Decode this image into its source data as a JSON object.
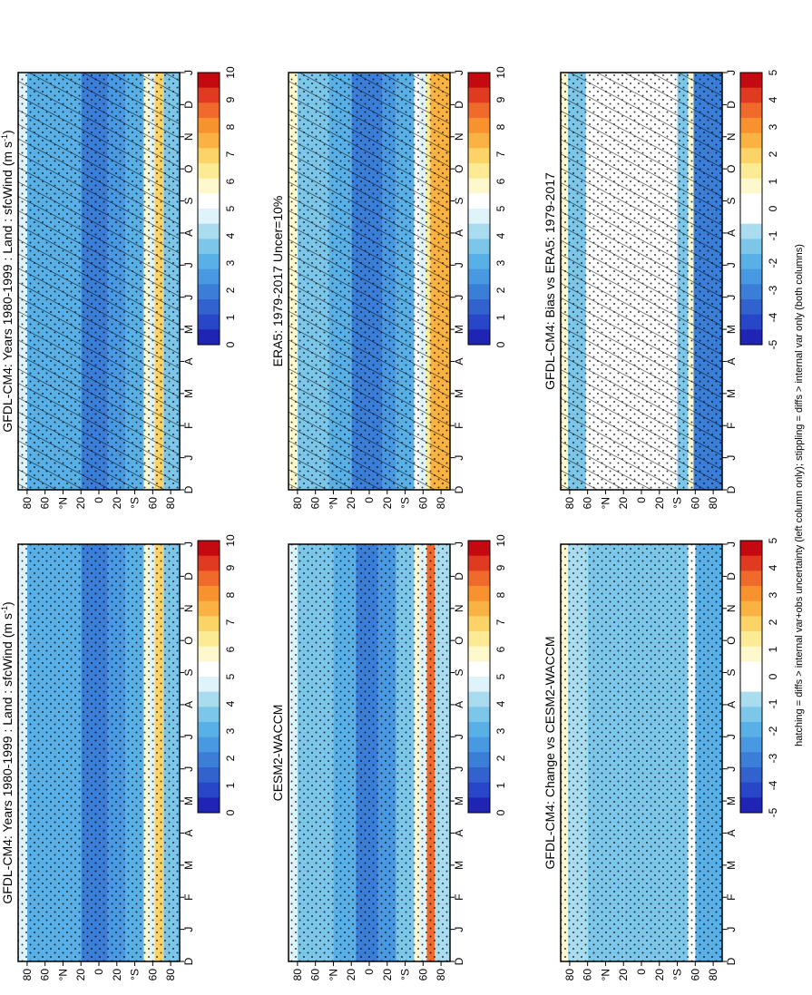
{
  "chart_data": {
    "type": "heatmap",
    "orientation": "rotated-90",
    "months": [
      "D",
      "J",
      "F",
      "M",
      "A",
      "M",
      "J",
      "J",
      "A",
      "S",
      "O",
      "N",
      "D",
      "J"
    ],
    "lat_ticks": [
      "80",
      "60",
      "°N",
      "20",
      "0",
      "20",
      "°S",
      "60",
      "80"
    ],
    "lat_range": [
      -90,
      90
    ],
    "footnote": "hatching = diffs > internal var+obs uncertainty (left column only); stippling = diffs > internal var only (both columns)",
    "colormaps": {
      "mean": [
        "#c40a10",
        "#e03a20",
        "#f06a2c",
        "#f8922e",
        "#fab343",
        "#fcd366",
        "#fdea95",
        "#fef8cd",
        "#ffffff",
        "#dff3fb",
        "#a9dcef",
        "#7cc6ea",
        "#58b0e6",
        "#4898e2",
        "#3a7ed8",
        "#3262cd",
        "#2846c8",
        "#2024b5"
      ],
      "diff": [
        "#c40a10",
        "#e03a20",
        "#f06a2c",
        "#f8922e",
        "#fab343",
        "#fcd366",
        "#fdea95",
        "#fef8cd",
        "#ffffff",
        "#ffffff",
        "#a9dcef",
        "#7cc6ea",
        "#58b0e6",
        "#4898e2",
        "#3a7ed8",
        "#3262cd",
        "#2846c8",
        "#2024b5"
      ]
    },
    "panels": [
      {
        "id": "bias",
        "title": "GFDL-CM4: Bias vs ERA5: 1979-2017",
        "colorbar": [
          "5",
          "4",
          "3",
          "2",
          "1",
          "0",
          "-1",
          "-2",
          "-3",
          "-4",
          "-5"
        ],
        "vmin": -5,
        "vmax": 5,
        "hatching": true,
        "bands": [
          {
            "lat": [
              -90,
              -58
            ],
            "value": -3.3
          },
          {
            "lat": [
              -58,
              -52
            ],
            "value": 0.8
          },
          {
            "lat": [
              -52,
              -40
            ],
            "value": -1.6
          },
          {
            "lat": [
              -40,
              62
            ],
            "value": 0.0
          },
          {
            "lat": [
              62,
              82
            ],
            "value": -1.5
          },
          {
            "lat": [
              82,
              90
            ],
            "value": 0.7
          }
        ]
      },
      {
        "id": "change",
        "title": "GFDL-CM4: Change vs CESM2-WACCM",
        "colorbar": [
          "5",
          "4",
          "3",
          "2",
          "1",
          "0",
          "-1",
          "-2",
          "-3",
          "-4",
          "-5"
        ],
        "vmin": -5,
        "vmax": 5,
        "hatching": false,
        "bands": [
          {
            "lat": [
              -90,
              -60
            ],
            "value": -2.2
          },
          {
            "lat": [
              -60,
              -52
            ],
            "value": -0.3
          },
          {
            "lat": [
              -52,
              -35
            ],
            "value": -1.2
          },
          {
            "lat": [
              -35,
              20
            ],
            "value": -1.4
          },
          {
            "lat": [
              20,
              60
            ],
            "value": -1.2
          },
          {
            "lat": [
              60,
              82
            ],
            "value": -1.0
          },
          {
            "lat": [
              82,
              90
            ],
            "value": 0.8
          }
        ]
      },
      {
        "id": "era5",
        "title": "ERA5: 1979-2017 Uncer=10%",
        "colorbar": [
          "10",
          "9",
          "8",
          "7",
          "6",
          "5",
          "4",
          "3",
          "2",
          "1",
          "0"
        ],
        "vmin": 0,
        "vmax": 10,
        "hatching": true,
        "bands": [
          {
            "lat": [
              -90,
              -68
            ],
            "value": 7.5
          },
          {
            "lat": [
              -68,
              -63
            ],
            "value": 6.5
          },
          {
            "lat": [
              -63,
              -56
            ],
            "value": 4.5
          },
          {
            "lat": [
              -56,
              -50
            ],
            "value": 5.5
          },
          {
            "lat": [
              -50,
              -30
            ],
            "value": 3.3
          },
          {
            "lat": [
              -30,
              -15
            ],
            "value": 2.6
          },
          {
            "lat": [
              -15,
              20
            ],
            "value": 1.8
          },
          {
            "lat": [
              20,
              45
            ],
            "value": 3.0
          },
          {
            "lat": [
              45,
              80
            ],
            "value": 3.4
          },
          {
            "lat": [
              80,
              90
            ],
            "value": 5.6
          }
        ]
      },
      {
        "id": "cesm",
        "title": "CESM2-WACCM",
        "colorbar": [
          "10",
          "9",
          "8",
          "7",
          "6",
          "5",
          "4",
          "3",
          "2",
          "1",
          "0"
        ],
        "vmin": 0,
        "vmax": 10,
        "hatching": false,
        "bands": [
          {
            "lat": [
              -90,
              -73
            ],
            "value": 4.0
          },
          {
            "lat": [
              -73,
              -64
            ],
            "value": 8.8
          },
          {
            "lat": [
              -64,
              -56
            ],
            "value": 5.0
          },
          {
            "lat": [
              -56,
              -50
            ],
            "value": 6.0
          },
          {
            "lat": [
              -50,
              -30
            ],
            "value": 3.6
          },
          {
            "lat": [
              -30,
              -10
            ],
            "value": 2.5
          },
          {
            "lat": [
              -10,
              15
            ],
            "value": 2.0
          },
          {
            "lat": [
              15,
              40
            ],
            "value": 3.3
          },
          {
            "lat": [
              40,
              80
            ],
            "value": 3.6
          },
          {
            "lat": [
              80,
              90
            ],
            "value": 4.8
          }
        ]
      },
      {
        "id": "gfdl-left",
        "title": "GFDL-CM4: Years 1980-1999 : Land : sfcWind (m s",
        "title_sup": "-1",
        "title_end": ")",
        "colorbar": [
          "10",
          "9",
          "8",
          "7",
          "6",
          "5",
          "4",
          "3",
          "2",
          "1",
          "0"
        ],
        "vmin": 0,
        "vmax": 10,
        "hatching": true,
        "bands": [
          {
            "lat": [
              -90,
              -72
            ],
            "value": 3.5
          },
          {
            "lat": [
              -72,
              -62
            ],
            "value": 6.8
          },
          {
            "lat": [
              -62,
              -56
            ],
            "value": 4.8
          },
          {
            "lat": [
              -56,
              -50
            ],
            "value": 5.6
          },
          {
            "lat": [
              -50,
              -30
            ],
            "value": 3.1
          },
          {
            "lat": [
              -30,
              -10
            ],
            "value": 2.4
          },
          {
            "lat": [
              -10,
              20
            ],
            "value": 1.7
          },
          {
            "lat": [
              20,
              45
            ],
            "value": 2.8
          },
          {
            "lat": [
              45,
              80
            ],
            "value": 3.2
          },
          {
            "lat": [
              80,
              90
            ],
            "value": 4.6
          }
        ]
      },
      {
        "id": "gfdl-right",
        "title": "GFDL-CM4: Years 1980-1999 : Land : sfcWind (m s",
        "title_sup": "-1",
        "title_end": ")",
        "colorbar": [
          "10",
          "9",
          "8",
          "7",
          "6",
          "5",
          "4",
          "3",
          "2",
          "1",
          "0"
        ],
        "vmin": 0,
        "vmax": 10,
        "hatching": false,
        "bands": [
          {
            "lat": [
              -90,
              -72
            ],
            "value": 3.5
          },
          {
            "lat": [
              -72,
              -62
            ],
            "value": 6.8
          },
          {
            "lat": [
              -62,
              -56
            ],
            "value": 4.8
          },
          {
            "lat": [
              -56,
              -50
            ],
            "value": 5.6
          },
          {
            "lat": [
              -50,
              -30
            ],
            "value": 3.1
          },
          {
            "lat": [
              -30,
              -10
            ],
            "value": 2.4
          },
          {
            "lat": [
              -10,
              20
            ],
            "value": 1.7
          },
          {
            "lat": [
              20,
              45
            ],
            "value": 2.8
          },
          {
            "lat": [
              45,
              80
            ],
            "value": 3.2
          },
          {
            "lat": [
              80,
              90
            ],
            "value": 4.6
          }
        ]
      }
    ]
  }
}
